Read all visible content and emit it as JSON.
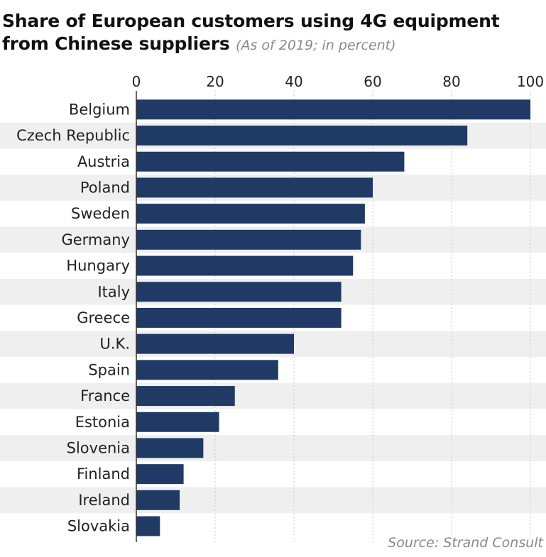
{
  "title_line1": "Share of European customers using 4G equipment",
  "title_line2": "from Chinese suppliers",
  "subtitle": "(As of 2019; in percent)",
  "source": "Source: Strand Consult",
  "colors": {
    "bar": "#1f3a64",
    "band": "#efefef",
    "grid": "#c8c8c8",
    "axis": "#333333"
  },
  "chart_data": {
    "type": "bar",
    "orientation": "horizontal",
    "title": "Share of European customers using 4G equipment from Chinese suppliers",
    "subtitle": "(As of 2019; in percent)",
    "xlim": [
      0,
      100
    ],
    "xticks": [
      0,
      20,
      40,
      60,
      80,
      100
    ],
    "categories": [
      "Belgium",
      "Czech Republic",
      "Austria",
      "Poland",
      "Sweden",
      "Germany",
      "Hungary",
      "Italy",
      "Greece",
      "U.K.",
      "Spain",
      "France",
      "Estonia",
      "Slovenia",
      "Finland",
      "Ireland",
      "Slovakia"
    ],
    "values": [
      100,
      84,
      68,
      60,
      58,
      57,
      55,
      52,
      52,
      40,
      36,
      25,
      21,
      17,
      12,
      11,
      6
    ],
    "grid": true,
    "axis_position": "top"
  }
}
